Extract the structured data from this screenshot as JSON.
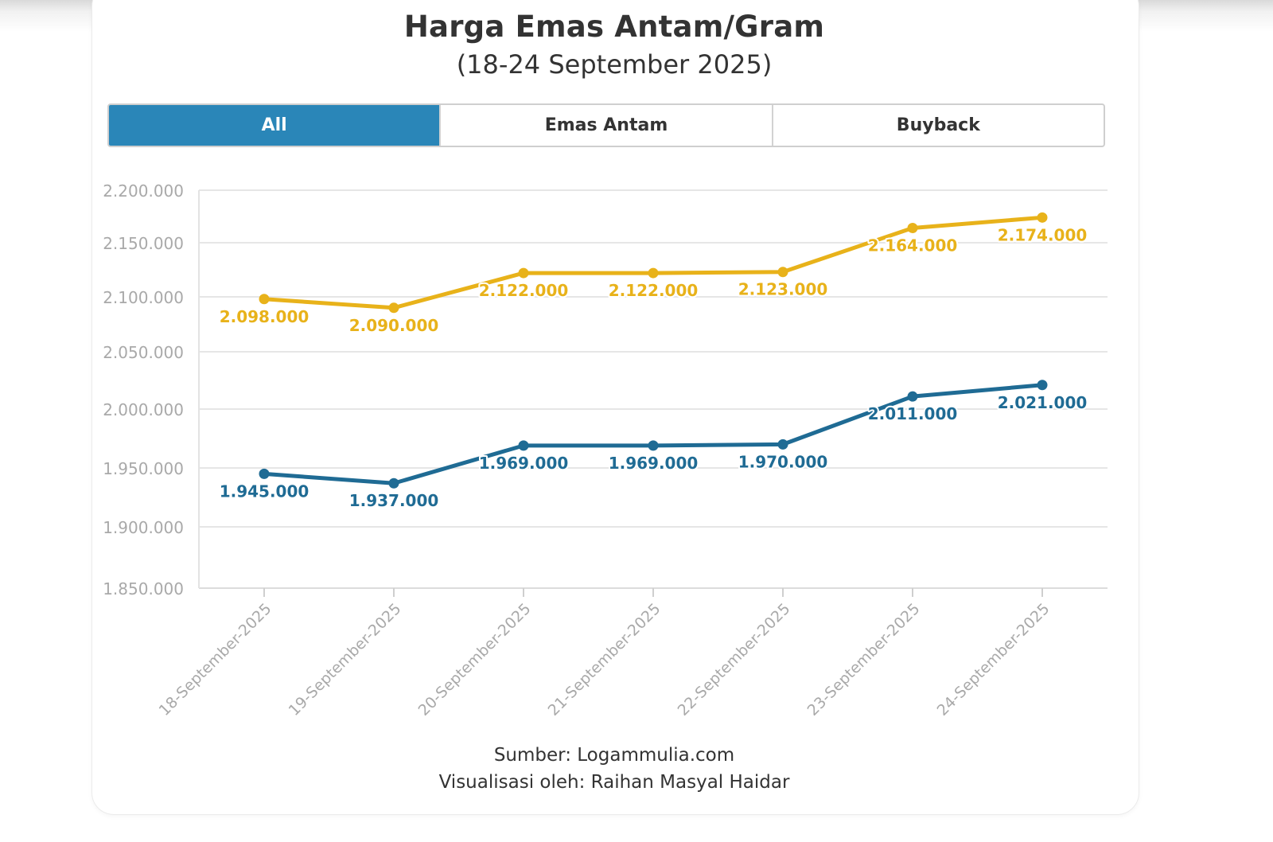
{
  "header": {
    "title": "Harga Emas Antam/Gram",
    "subtitle": "(18-24 September 2025)"
  },
  "tabs": [
    {
      "label": "All",
      "active": true
    },
    {
      "label": "Emas Antam",
      "active": false
    },
    {
      "label": "Buyback",
      "active": false
    }
  ],
  "footer": {
    "source": "Sumber: Logammulia.com",
    "credit": "Visualisasi oleh: Raihan Masyal Haidar"
  },
  "colors": {
    "antam": "#e8b21a",
    "buyback": "#1f6b94",
    "tab_active": "#2a86b8",
    "axis_text": "#a9a9a9",
    "grid": "#e6e6e6"
  },
  "chart_data": {
    "type": "line",
    "title": "Harga Emas Antam/Gram",
    "subtitle": "(18-24 September 2025)",
    "xlabel": "",
    "ylabel": "",
    "categories": [
      "18-September-2025",
      "19-September-2025",
      "20-September-2025",
      "21-September-2025",
      "22-September-2025",
      "23-September-2025",
      "24-September-2025"
    ],
    "y_ticks": [
      1850000,
      1900000,
      1950000,
      2000000,
      2050000,
      2100000,
      2150000,
      2200000
    ],
    "y_tick_labels": [
      "1.850.000",
      "1.900.000",
      "1.950.000",
      "2.000.000",
      "2.050.000",
      "2.100.000",
      "2.150.000",
      "2.200.000"
    ],
    "ylim": [
      1850000,
      2200000
    ],
    "grid": true,
    "series": [
      {
        "key": "antam",
        "color": "#e8b21a",
        "values": [
          2098000,
          2090000,
          2122000,
          2122000,
          2123000,
          2164000,
          2174000
        ],
        "labels": [
          "2.098.000",
          "2.090.000",
          "2.122.000",
          "2.122.000",
          "2.123.000",
          "2.164.000",
          "2.174.000"
        ]
      },
      {
        "key": "buyback",
        "color": "#1f6b94",
        "values": [
          1945000,
          1937000,
          1969000,
          1969000,
          1970000,
          2011000,
          2021000
        ],
        "labels": [
          "1.945.000",
          "1.937.000",
          "1.969.000",
          "1.969.000",
          "1.970.000",
          "2.011.000",
          "2.021.000"
        ]
      }
    ]
  }
}
